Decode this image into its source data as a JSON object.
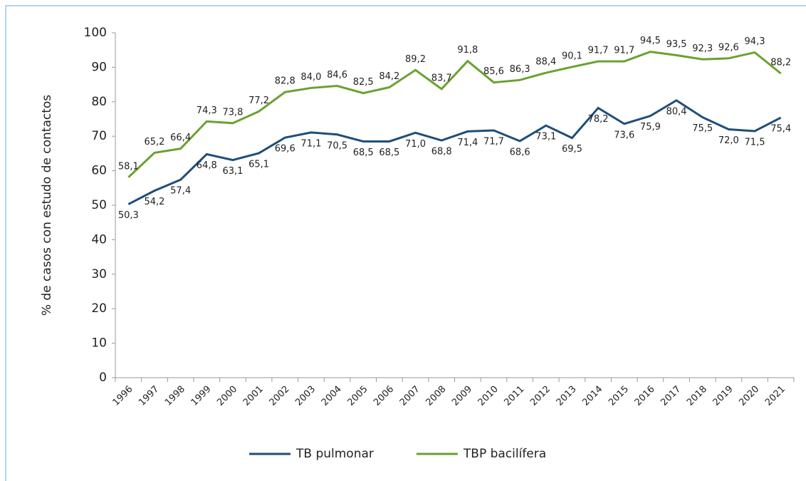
{
  "chart_data": {
    "type": "line",
    "y_label": "% de casos con estudo de contactos",
    "categories": [
      "1996",
      "1997",
      "1998",
      "1999",
      "2000",
      "2001",
      "2002",
      "2003",
      "2004",
      "2005",
      "2006",
      "2007",
      "2008",
      "2009",
      "2010",
      "2011",
      "2012",
      "2013",
      "2014",
      "2015",
      "2016",
      "2017",
      "2018",
      "2019",
      "2020",
      "2021"
    ],
    "series": [
      {
        "name": "TB pulmonar",
        "color": "#1f4e79",
        "values": [
          50.3,
          54.2,
          57.4,
          64.8,
          63.1,
          65.1,
          69.6,
          71.1,
          70.5,
          68.5,
          68.5,
          71.0,
          68.8,
          71.4,
          71.7,
          68.6,
          73.1,
          69.5,
          78.2,
          73.6,
          75.9,
          80.4,
          75.5,
          72.0,
          71.5,
          75.4
        ],
        "value_labels": [
          "50,3",
          "54,2",
          "57,4",
          "64,8",
          "63,1",
          "65,1",
          "69,6",
          "71,1",
          "70,5",
          "68,5",
          "68,5",
          "71,0",
          "68,8",
          "71,4",
          "71,7",
          "68,6",
          "73,1",
          "69,5",
          "78,2",
          "73,6",
          "75,9",
          "80,4",
          "75,5",
          "72,0",
          "71,5",
          "75,4"
        ]
      },
      {
        "name": "TBP bacilífera",
        "color": "#6aa130",
        "values": [
          58.1,
          65.2,
          66.4,
          74.3,
          73.8,
          77.2,
          82.8,
          84.0,
          84.6,
          82.5,
          84.2,
          89.2,
          83.7,
          91.8,
          85.6,
          86.3,
          88.4,
          90.1,
          91.7,
          91.7,
          94.5,
          93.5,
          92.3,
          92.6,
          94.3,
          88.2
        ],
        "value_labels": [
          "58,1",
          "65,2",
          "66,4",
          "74,3",
          "73,8",
          "77,2",
          "82,8",
          "84,0",
          "84,6",
          "82,5",
          "84,2",
          "89,2",
          "83,7",
          "91,8",
          "85,6",
          "86,3",
          "88,4",
          "90,1",
          "91,7",
          "91,7",
          "94,5",
          "93,5",
          "92,3",
          "92,6",
          "94,3",
          "88,2"
        ]
      }
    ],
    "ylim": [
      0,
      100
    ],
    "yticks": [
      0,
      10,
      20,
      30,
      40,
      50,
      60,
      70,
      80,
      90,
      100
    ],
    "grid": false,
    "legend": "bottom"
  }
}
